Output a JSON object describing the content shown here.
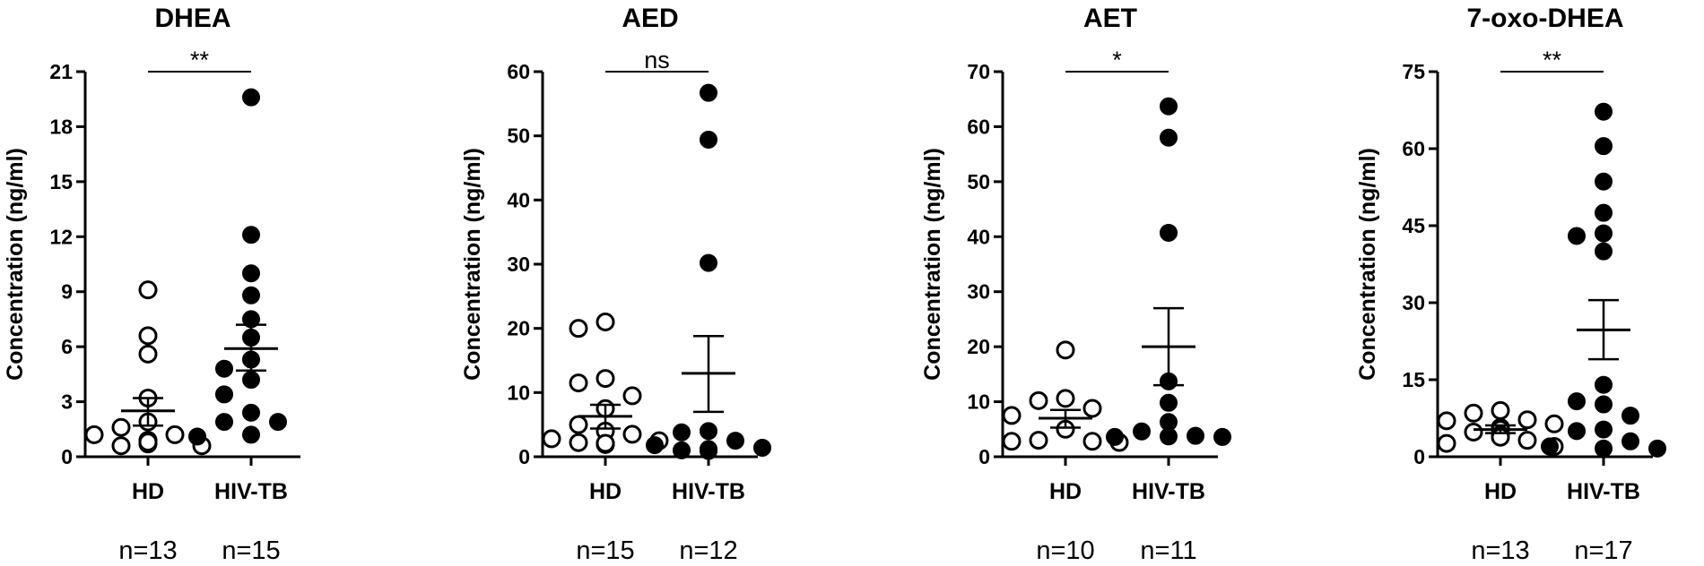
{
  "chart_data": [
    {
      "type": "scatter",
      "title": "DHEA",
      "ylabel": "Concentration (ng/ml)",
      "ylim": [
        0,
        21
      ],
      "yticks": [
        0,
        3,
        6,
        9,
        12,
        15,
        18,
        21
      ],
      "categories": [
        "HD",
        "HIV-TB"
      ],
      "significance": "**",
      "groups": [
        {
          "name": "HD",
          "n_label": "n=13",
          "fill": "open",
          "mean": 2.5,
          "sem_low": 1.7,
          "sem_high": 3.2,
          "values": [
            9.1,
            6.6,
            5.6,
            3.2,
            1.9,
            1.6,
            1.2,
            1.2,
            0.9,
            0.6,
            0.6,
            0.7,
            0.8
          ]
        },
        {
          "name": "HIV-TB",
          "n_label": "n=15",
          "fill": "filled",
          "mean": 5.9,
          "sem_low": 4.7,
          "sem_high": 7.2,
          "values": [
            19.6,
            12.1,
            10.0,
            8.8,
            7.5,
            6.5,
            5.3,
            4.8,
            4.2,
            3.4,
            2.4,
            1.9,
            1.9,
            1.2,
            1.1
          ]
        }
      ]
    },
    {
      "type": "scatter",
      "title": "AED",
      "ylabel": "Concentration (ng/ml)",
      "ylim": [
        0,
        60
      ],
      "yticks": [
        0,
        10,
        20,
        30,
        40,
        50,
        60
      ],
      "categories": [
        "HD",
        "HIV-TB"
      ],
      "significance": "ns",
      "groups": [
        {
          "name": "HD",
          "n_label": "n=15",
          "fill": "open",
          "mean": 6.3,
          "sem_low": 4.4,
          "sem_high": 8.1,
          "values": [
            21.0,
            20.0,
            12.2,
            11.5,
            9.5,
            7.5,
            5.0,
            4.0,
            3.5,
            2.8,
            2.5,
            2.2,
            2.0,
            1.9,
            2.1
          ]
        },
        {
          "name": "HIV-TB",
          "n_label": "n=12",
          "fill": "filled",
          "mean": 13.0,
          "sem_low": 7.0,
          "sem_high": 18.8,
          "values": [
            56.7,
            49.4,
            30.2,
            4.0,
            3.8,
            2.5,
            1.8,
            1.4,
            1.2,
            1.0,
            0.9,
            1.1
          ]
        }
      ]
    },
    {
      "type": "scatter",
      "title": "AET",
      "ylabel": "Concentration (ng/ml)",
      "ylim": [
        0,
        70
      ],
      "yticks": [
        0,
        10,
        20,
        30,
        40,
        50,
        60,
        70
      ],
      "categories": [
        "HD",
        "HIV-TB"
      ],
      "significance": "*",
      "groups": [
        {
          "name": "HD",
          "n_label": "n=10",
          "fill": "open",
          "mean": 7.0,
          "sem_low": 5.3,
          "sem_high": 8.5,
          "values": [
            19.4,
            10.6,
            10.2,
            8.8,
            7.5,
            5.0,
            3.0,
            2.8,
            2.8,
            2.6
          ]
        },
        {
          "name": "HIV-TB",
          "n_label": "n=11",
          "fill": "filled",
          "mean": 20.0,
          "sem_low": 13.0,
          "sem_high": 27.0,
          "values": [
            63.7,
            58.0,
            40.7,
            13.7,
            9.8,
            6.3,
            4.6,
            3.8,
            3.6,
            3.6,
            3.7
          ]
        }
      ]
    },
    {
      "type": "scatter",
      "title": "7-oxo-DHEA",
      "ylabel": "Concentration (ng/ml)",
      "ylim": [
        0,
        75
      ],
      "yticks": [
        0,
        15,
        30,
        45,
        60,
        75
      ],
      "categories": [
        "HD",
        "HIV-TB"
      ],
      "significance": "**",
      "groups": [
        {
          "name": "HD",
          "n_label": "n=13",
          "fill": "open",
          "mean": 5.3,
          "sem_low": 4.6,
          "sem_high": 6.1,
          "values": [
            9.0,
            8.5,
            7.2,
            7.0,
            6.4,
            5.7,
            5.3,
            4.8,
            4.3,
            3.8,
            3.2,
            2.6,
            2.0
          ]
        },
        {
          "name": "HIV-TB",
          "n_label": "n=17",
          "fill": "filled",
          "mean": 24.7,
          "sem_low": 19.0,
          "sem_high": 30.5,
          "values": [
            67.2,
            60.5,
            53.6,
            47.5,
            43.5,
            43.0,
            40.0,
            14.0,
            10.8,
            10.2,
            8.0,
            5.3,
            5.0,
            3.0,
            2.0,
            1.6,
            1.6
          ]
        }
      ]
    }
  ]
}
